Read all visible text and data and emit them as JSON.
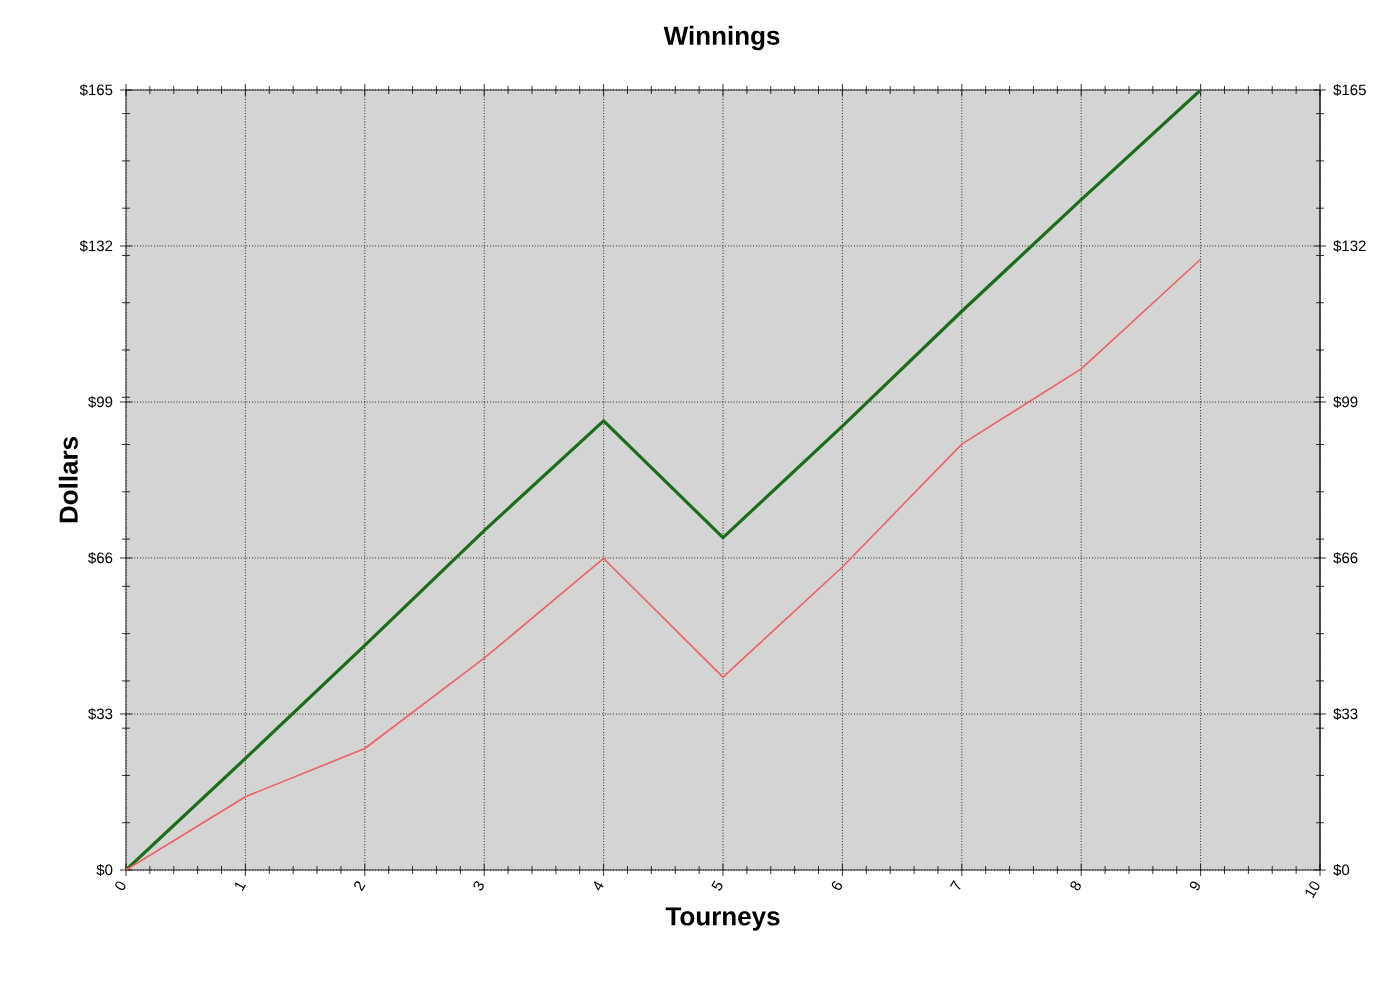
{
  "chart_data": {
    "type": "line",
    "title": "Winnings",
    "xlabel": "Tourneys",
    "ylabel": "Dollars",
    "x": [
      0,
      1,
      2,
      3,
      4,
      5,
      6,
      7,
      8,
      9
    ],
    "series": [
      {
        "color": "#1a6e1a",
        "values": [
          0,
          23.6,
          47.5,
          71.8,
          95.0,
          70.3,
          93.9,
          118.2,
          141.8,
          165
        ]
      },
      {
        "color": "#f06060",
        "values": [
          0,
          15.5,
          25.7,
          44.8,
          65.9,
          40.8,
          64.1,
          90.1,
          106.0,
          129.2
        ]
      }
    ],
    "xlim": [
      0,
      10
    ],
    "xticks": [
      0,
      1,
      2,
      3,
      4,
      5,
      6,
      7,
      8,
      9,
      10
    ],
    "ylim": [
      0,
      165
    ],
    "yticks": [
      {
        "value": 0,
        "label": "$0"
      },
      {
        "value": 10,
        "label": null
      },
      {
        "value": 20,
        "label": null
      },
      {
        "value": 30,
        "label": null
      },
      {
        "value": 33,
        "label": "$33"
      },
      {
        "value": 40,
        "label": null
      },
      {
        "value": 50,
        "label": null
      },
      {
        "value": 60,
        "label": null
      },
      {
        "value": 66,
        "label": "$66"
      },
      {
        "value": 70,
        "label": null
      },
      {
        "value": 80,
        "label": null
      },
      {
        "value": 90,
        "label": null
      },
      {
        "value": 99,
        "label": "$99"
      },
      {
        "value": 100,
        "label": null
      },
      {
        "value": 110,
        "label": null
      },
      {
        "value": 120,
        "label": null
      },
      {
        "value": 130,
        "label": null
      },
      {
        "value": 132,
        "label": "$132"
      },
      {
        "value": 140,
        "label": null
      },
      {
        "value": 150,
        "label": null
      },
      {
        "value": 160,
        "label": null
      },
      {
        "value": 165,
        "label": "$165"
      }
    ],
    "y2lim": [
      0,
      165
    ],
    "y2ticks": [
      {
        "value": 0,
        "label": "$0"
      },
      {
        "value": 10,
        "label": null
      },
      {
        "value": 20,
        "label": null
      },
      {
        "value": 30,
        "label": null
      },
      {
        "value": 33,
        "label": "$33"
      },
      {
        "value": 40,
        "label": null
      },
      {
        "value": 50,
        "label": null
      },
      {
        "value": 60,
        "label": null
      },
      {
        "value": 66,
        "label": "$66"
      },
      {
        "value": 70,
        "label": null
      },
      {
        "value": 80,
        "label": null
      },
      {
        "value": 90,
        "label": null
      },
      {
        "value": 99,
        "label": "$99"
      },
      {
        "value": 100,
        "label": null
      },
      {
        "value": 110,
        "label": null
      },
      {
        "value": 120,
        "label": null
      },
      {
        "value": 130,
        "label": null
      },
      {
        "value": 132,
        "label": "$132"
      },
      {
        "value": 140,
        "label": null
      },
      {
        "value": 150,
        "label": null
      },
      {
        "value": 160,
        "label": null
      },
      {
        "value": 165,
        "label": "$165"
      }
    ],
    "grid": true,
    "marker": "none"
  }
}
